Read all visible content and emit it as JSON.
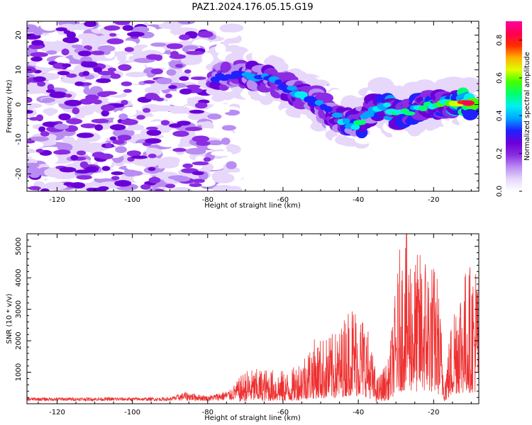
{
  "figure": {
    "title": "PAZ1.2024.176.05.15.G19"
  },
  "chart_data": [
    {
      "type": "heatmap",
      "xlabel": "Height of straight line (km)",
      "ylabel": "Frequency (Hz)",
      "xlim": [
        -128,
        -8
      ],
      "ylim": [
        -25,
        24
      ],
      "xticks": [
        -120,
        -100,
        -80,
        -60,
        -40,
        -20
      ],
      "yticks": [
        -20,
        -10,
        0,
        10,
        20
      ],
      "colorbar": {
        "label": "Normalized spectral amplitude",
        "range": [
          0,
          0.9
        ],
        "ticks": [
          0.0,
          0.2,
          0.4,
          0.6,
          0.8
        ],
        "colormap": "gist_ncar-like (white-purple-blue-cyan-green-yellow-red-magenta)"
      },
      "colormap_stops": [
        "#ffffff",
        "#e6d7fb",
        "#b98cf2",
        "#8b2be2",
        "#6a00d8",
        "#2020ff",
        "#00a6ff",
        "#00f0f0",
        "#00ff70",
        "#44ff00",
        "#dcff00",
        "#ffb000",
        "#ff2a00",
        "#ff0050",
        "#ff00a0"
      ],
      "ridge": {
        "description": "dominant spectral ridge (frequency vs height)",
        "points": [
          [
            -78,
            7.5
          ],
          [
            -72,
            9
          ],
          [
            -66,
            8
          ],
          [
            -62,
            6.5
          ],
          [
            -57,
            4
          ],
          [
            -53,
            2
          ],
          [
            -48,
            -2
          ],
          [
            -44,
            -5
          ],
          [
            -40,
            -6
          ],
          [
            -36,
            -1
          ],
          [
            -33,
            0
          ],
          [
            -30,
            -3
          ],
          [
            -26,
            -2
          ],
          [
            -22,
            0
          ],
          [
            -18,
            0
          ],
          [
            -14,
            1
          ],
          [
            -10,
            0
          ]
        ],
        "amplitude": [
          0.35,
          0.4,
          0.42,
          0.44,
          0.4,
          0.45,
          0.38,
          0.45,
          0.5,
          0.45,
          0.52,
          0.55,
          0.5,
          0.55,
          0.55,
          0.65,
          0.85
        ]
      },
      "noise_region_xlim": [
        -128,
        -80
      ],
      "noise_amplitude": 0.25
    },
    {
      "type": "line",
      "xlabel": "Height of straight line (km)",
      "ylabel": "SNR (10 * v/v)",
      "xlim": [
        -128,
        -8
      ],
      "ylim": [
        0,
        5400
      ],
      "xticks": [
        -120,
        -100,
        -80,
        -60,
        -40,
        -20
      ],
      "yticks": [
        1000,
        2000,
        3000,
        4000,
        5000
      ],
      "color": "#ee3030",
      "envelope": {
        "description": "approximate SNR envelope (height km -> typical max SNR)",
        "x": [
          -128,
          -90,
          -86,
          -80,
          -74,
          -70,
          -65,
          -58,
          -52,
          -48,
          -45,
          -42,
          -38,
          -35,
          -32,
          -29,
          -27,
          -25,
          -22,
          -19,
          -17,
          -14,
          -11,
          -8
        ],
        "y": [
          200,
          200,
          380,
          250,
          450,
          1050,
          1100,
          1000,
          2000,
          2100,
          2300,
          3300,
          2700,
          800,
          1400,
          4800,
          5400,
          4600,
          4900,
          4100,
          1000,
          3900,
          4300,
          4600
        ]
      }
    }
  ]
}
